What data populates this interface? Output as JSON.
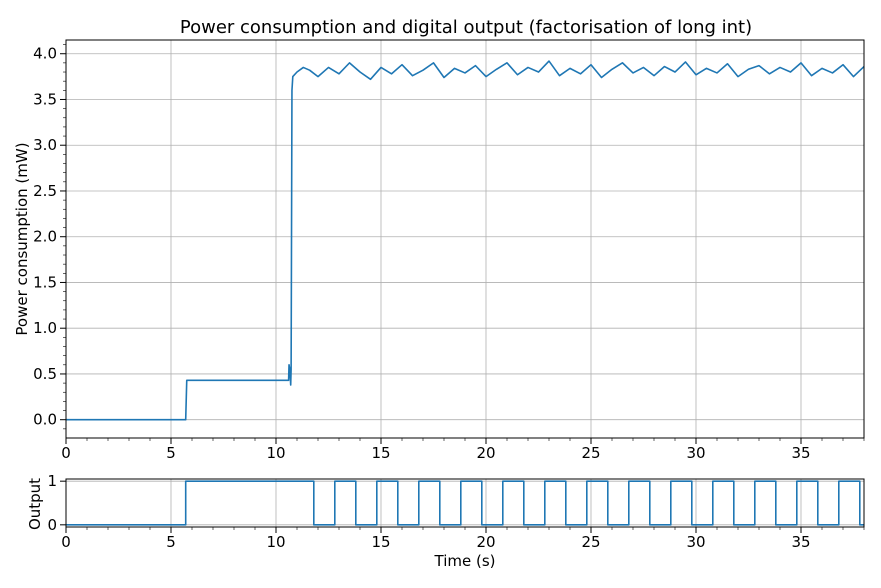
{
  "chart_data": [
    {
      "type": "line",
      "title": "Power consumption and digital output (factorisation of long int)",
      "xlabel": "",
      "ylabel": "Power consumption (mW)",
      "xlim": [
        0,
        38
      ],
      "ylim": [
        -0.2,
        4.15
      ],
      "grid": true,
      "x_ticks": [
        0,
        5,
        10,
        15,
        20,
        25,
        30,
        35
      ],
      "x_tick_labels": [
        "0",
        "5",
        "10",
        "15",
        "20",
        "25",
        "30",
        "35"
      ],
      "y_ticks": [
        0.0,
        0.5,
        1.0,
        1.5,
        2.0,
        2.5,
        3.0,
        3.5,
        4.0
      ],
      "y_tick_labels": [
        "0.0",
        "0.5",
        "1.0",
        "1.5",
        "2.0",
        "2.5",
        "3.0",
        "3.5",
        "4.0"
      ],
      "series": [
        {
          "color": "#1f77b4",
          "x": [
            0,
            5.7,
            5.75,
            10.6,
            10.62,
            10.66,
            10.7,
            10.72,
            10.76,
            10.8,
            11.0,
            11.3,
            11.6,
            12.0,
            12.5,
            13.0,
            13.5,
            14.0,
            14.5,
            15.0,
            15.5,
            16.0,
            16.5,
            17.0,
            17.5,
            18.0,
            18.5,
            19.0,
            19.5,
            20.0,
            20.5,
            21.0,
            21.5,
            22.0,
            22.5,
            23.0,
            23.5,
            24.0,
            24.5,
            25.0,
            25.5,
            26.0,
            26.5,
            27.0,
            27.5,
            28.0,
            28.5,
            29.0,
            29.5,
            30.0,
            30.5,
            31.0,
            31.5,
            32.0,
            32.5,
            33.0,
            33.5,
            34.0,
            34.5,
            35.0,
            35.5,
            36.0,
            36.5,
            37.0,
            37.5,
            38.0
          ],
          "y": [
            0.0,
            0.0,
            0.43,
            0.43,
            0.6,
            0.55,
            0.38,
            0.55,
            3.6,
            3.75,
            3.8,
            3.85,
            3.82,
            3.75,
            3.85,
            3.78,
            3.9,
            3.8,
            3.72,
            3.85,
            3.78,
            3.88,
            3.76,
            3.82,
            3.9,
            3.74,
            3.84,
            3.79,
            3.87,
            3.75,
            3.83,
            3.9,
            3.77,
            3.85,
            3.8,
            3.92,
            3.76,
            3.84,
            3.78,
            3.88,
            3.74,
            3.83,
            3.9,
            3.79,
            3.85,
            3.76,
            3.86,
            3.8,
            3.91,
            3.77,
            3.84,
            3.79,
            3.89,
            3.75,
            3.83,
            3.87,
            3.78,
            3.85,
            3.8,
            3.9,
            3.76,
            3.84,
            3.79,
            3.88,
            3.75,
            3.86
          ]
        }
      ]
    },
    {
      "type": "line",
      "title": "",
      "xlabel": "Time (s)",
      "ylabel": "Output",
      "xlim": [
        0,
        38
      ],
      "ylim": [
        -0.05,
        1.05
      ],
      "grid": true,
      "x_ticks": [
        0,
        5,
        10,
        15,
        20,
        25,
        30,
        35
      ],
      "x_tick_labels": [
        "0",
        "5",
        "10",
        "15",
        "20",
        "25",
        "30",
        "35"
      ],
      "y_ticks": [
        0,
        1
      ],
      "y_tick_labels": [
        "0",
        "1"
      ],
      "series": [
        {
          "color": "#1f77b4",
          "x": [
            0,
            5.7,
            5.7,
            11.8,
            11.8,
            12.8,
            12.8,
            13.8,
            13.8,
            14.8,
            14.8,
            15.8,
            15.8,
            16.8,
            16.8,
            17.8,
            17.8,
            18.8,
            18.8,
            19.8,
            19.8,
            20.8,
            20.8,
            21.8,
            21.8,
            22.8,
            22.8,
            23.8,
            23.8,
            24.8,
            24.8,
            25.8,
            25.8,
            26.8,
            26.8,
            27.8,
            27.8,
            28.8,
            28.8,
            29.8,
            29.8,
            30.8,
            30.8,
            31.8,
            31.8,
            32.8,
            32.8,
            33.8,
            33.8,
            34.8,
            34.8,
            35.8,
            35.8,
            36.8,
            36.8,
            37.8,
            37.8,
            38.0
          ],
          "y": [
            0,
            0,
            1,
            1,
            0,
            0,
            1,
            1,
            0,
            0,
            1,
            1,
            0,
            0,
            1,
            1,
            0,
            0,
            1,
            1,
            0,
            0,
            1,
            1,
            0,
            0,
            1,
            1,
            0,
            0,
            1,
            1,
            0,
            0,
            1,
            1,
            0,
            0,
            1,
            1,
            0,
            0,
            1,
            1,
            0,
            0,
            1,
            1,
            0,
            0,
            1,
            1,
            0,
            0,
            1,
            1,
            0,
            0
          ]
        }
      ]
    }
  ]
}
